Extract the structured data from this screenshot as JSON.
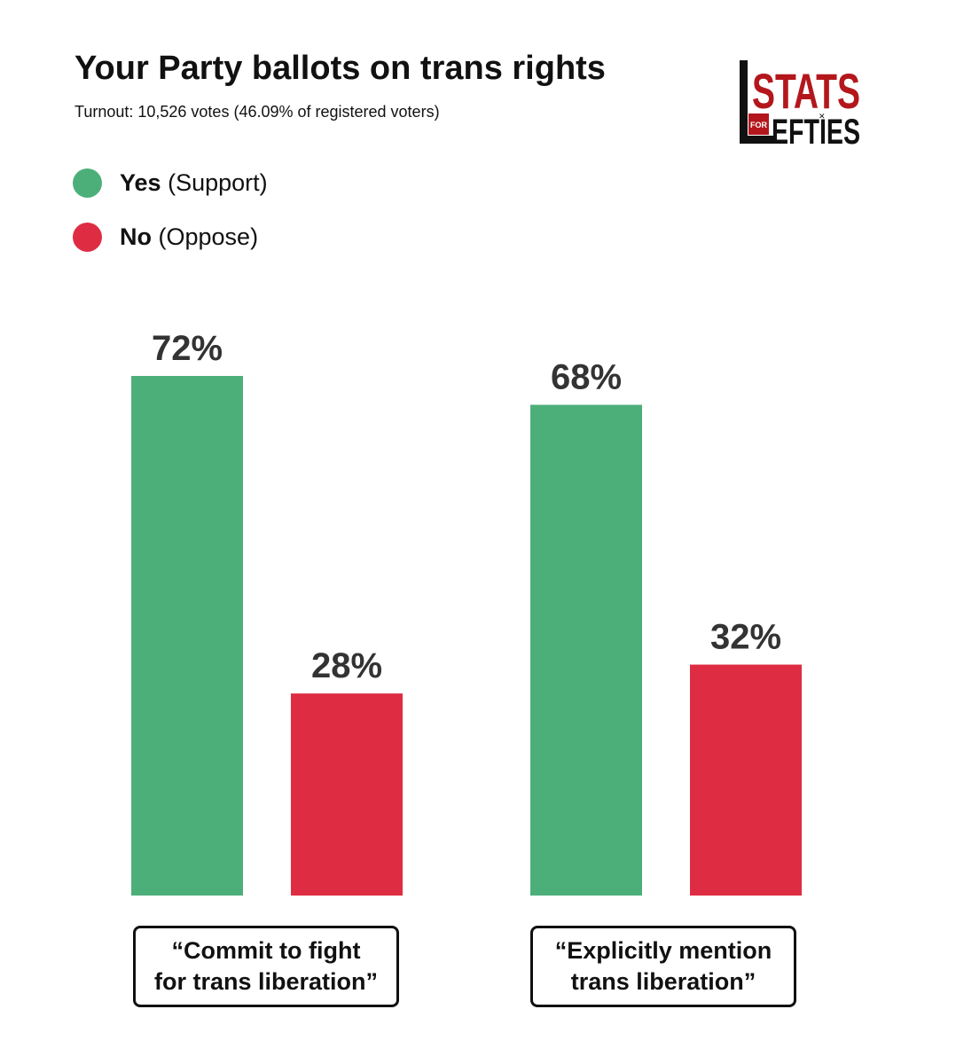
{
  "header": {
    "title": "Your Party ballots on trans rights",
    "subtitle": "Turnout: 10,526 votes (46.09% of registered voters)"
  },
  "logo": {
    "text_top": "STATS",
    "text_for": "FOR",
    "text_bottom": "EFTIES",
    "colors": {
      "red": "#b3171c",
      "black": "#111111"
    }
  },
  "legend": [
    {
      "bold": "Yes",
      "label": "(Support)",
      "color": "#4caf7a"
    },
    {
      "bold": "No",
      "label": "(Oppose)",
      "color": "#de2d43"
    }
  ],
  "chart_data": {
    "type": "bar",
    "title": "Your Party ballots on trans rights",
    "categories": [
      "“Commit to fight\nfor trans liberation”",
      "“Explicitly mention\ntrans liberation”"
    ],
    "series": [
      {
        "name": "Yes (Support)",
        "values": [
          72,
          68
        ],
        "color": "#4caf7a"
      },
      {
        "name": "No (Oppose)",
        "values": [
          28,
          32
        ],
        "color": "#de2d43"
      }
    ],
    "value_labels": [
      [
        "72%",
        "68%"
      ],
      [
        "28%",
        "32%"
      ]
    ],
    "ylim": [
      0,
      72
    ],
    "xlabel": "",
    "ylabel": "",
    "grid": false
  }
}
